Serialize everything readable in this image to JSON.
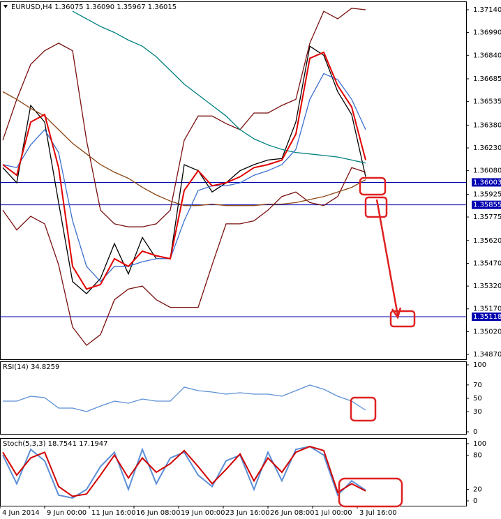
{
  "chart_data": [
    {
      "type": "line",
      "title": "EURUSD,H4  1.36075 1.36090 1.35967 1.36015",
      "x": [
        1,
        6,
        11,
        16,
        21,
        26,
        31,
        36,
        41,
        46,
        51,
        56,
        61,
        66,
        71,
        76,
        81,
        86,
        91,
        96,
        101,
        106,
        111,
        116,
        121,
        126,
        131
      ],
      "xlim": [
        0,
        167
      ],
      "ylim": [
        1.34838,
        1.37195
      ],
      "yticks": [
        {
          "value": 1.3714,
          "label": "1.37140"
        },
        {
          "value": 1.3699,
          "label": "1.36990"
        },
        {
          "value": 1.3684,
          "label": "1.36840"
        },
        1.36685,
        1.36535,
        {
          "value": 1.3638,
          "label": "1.36380"
        },
        {
          "value": 1.3623,
          "label": "1.36230"
        },
        {
          "value": 1.3608,
          "label": "1.36080"
        },
        1.35925,
        1.35775,
        {
          "value": 1.3562,
          "label": "1.35620"
        },
        {
          "value": 1.3547,
          "label": "1.35470"
        },
        {
          "value": 1.3532,
          "label": "1.35320"
        },
        {
          "value": 1.3517,
          "label": "1.35170"
        },
        {
          "value": 1.3502,
          "label": "1.35020"
        },
        {
          "value": 1.3487,
          "label": "1.34870"
        }
      ],
      "hlines": [
        1.36003,
        1.35855,
        1.35118
      ],
      "hline_color": "#0000b0",
      "series": [
        {
          "color": "#000000",
          "values": [
            1.361,
            1.36,
            1.3651,
            1.364,
            1.3587,
            1.3535,
            1.3527,
            1.3537,
            1.356,
            1.354,
            1.3564,
            1.355,
            1.355,
            1.3612,
            1.3608,
            1.3594,
            1.36,
            1.3608,
            1.3612,
            1.3615,
            1.3616,
            1.364,
            1.369,
            1.3684,
            1.366,
            1.3645,
            1.3604
          ]
        },
        {
          "color": "#7a1010",
          "values": [
            1.3628,
            1.3655,
            1.3678,
            1.3687,
            1.3692,
            1.3687,
            1.3628,
            1.3582,
            1.3573,
            1.3571,
            1.3571,
            1.3573,
            1.3582,
            1.3628,
            1.3644,
            1.3644,
            1.3639,
            1.3635,
            1.3646,
            1.3646,
            1.3651,
            1.3655,
            1.3692,
            1.3713,
            1.3708,
            1.3715,
            1.3714
          ]
        },
        {
          "color": "#7a1010",
          "values": [
            1.3582,
            1.3569,
            1.3578,
            1.3573,
            1.3546,
            1.3505,
            1.3493,
            1.35,
            1.3523,
            1.353,
            1.3532,
            1.3523,
            1.3518,
            1.3518,
            1.3518,
            1.3546,
            1.3573,
            1.3573,
            1.3575,
            1.3582,
            1.3591,
            1.3594,
            1.3587,
            1.3585,
            1.3591,
            1.361,
            1.3607
          ]
        },
        {
          "color": "#8b4513",
          "values": [
            1.366,
            1.3655,
            1.3649,
            1.3644,
            1.3635,
            1.3626,
            1.3619,
            1.3612,
            1.3607,
            1.3603,
            1.3597,
            1.3592,
            1.3588,
            1.3585,
            1.3585,
            1.3586,
            1.3585,
            1.3585,
            1.3585,
            1.3586,
            1.3586,
            1.3587,
            1.3589,
            1.3591,
            1.3594,
            1.3597,
            1.3602
          ]
        },
        {
          "color": "#008080",
          "values": [
            null,
            null,
            null,
            null,
            null,
            1.3713,
            1.3708,
            1.3703,
            1.3699,
            1.3694,
            1.369,
            1.3683,
            1.3674,
            1.3665,
            1.3658,
            1.3651,
            1.3644,
            1.3635,
            1.3629,
            1.3625,
            1.3622,
            1.362,
            1.3619,
            1.3618,
            1.3617,
            1.3615,
            1.3613
          ]
        },
        {
          "color": "#3a6fd0",
          "values": [
            1.3612,
            1.361,
            1.3625,
            1.3635,
            1.362,
            1.3575,
            1.3545,
            1.3535,
            1.3545,
            1.3545,
            1.3548,
            1.355,
            1.355,
            1.3575,
            1.3595,
            1.3598,
            1.3598,
            1.36,
            1.3605,
            1.3608,
            1.3612,
            1.3622,
            1.3655,
            1.3672,
            1.3668,
            1.3655,
            1.3635
          ]
        },
        {
          "color": "#e00000",
          "values": [
            1.3612,
            1.3605,
            1.364,
            1.3645,
            1.361,
            1.3545,
            1.353,
            1.3533,
            1.355,
            1.3545,
            1.3555,
            1.3552,
            1.355,
            1.3595,
            1.3608,
            1.3598,
            1.36,
            1.3604,
            1.361,
            1.3612,
            1.3615,
            1.3632,
            1.3682,
            1.3686,
            1.3664,
            1.365,
            1.3615
          ]
        }
      ]
    },
    {
      "type": "line",
      "title": "RSI(14) 34.8259",
      "x": [
        1,
        6,
        11,
        16,
        21,
        26,
        31,
        36,
        41,
        46,
        51,
        56,
        61,
        66,
        71,
        76,
        81,
        86,
        91,
        96,
        101,
        106,
        111,
        116,
        121,
        126,
        131
      ],
      "xlim": [
        0,
        167
      ],
      "ylim": [
        -3.1,
        105.2
      ],
      "yticks": [
        100,
        70,
        50,
        30,
        0
      ],
      "series": [
        {
          "color": "#5b8fd6",
          "values": [
            45.8,
            45.8,
            53.1,
            51,
            35.4,
            35.4,
            30.2,
            38.5,
            45.8,
            42.7,
            49,
            45.8,
            45.8,
            66.7,
            61.5,
            59.4,
            56.3,
            58.3,
            56.3,
            56.3,
            53.1,
            61.5,
            69.8,
            63.5,
            53.1,
            45.8,
            32.3
          ]
        }
      ]
    },
    {
      "type": "line",
      "title": "Stoch(5,3,3) 18.7541 17.1947",
      "x": [
        1,
        6,
        11,
        16,
        21,
        26,
        31,
        36,
        41,
        46,
        51,
        56,
        61,
        66,
        71,
        76,
        81,
        86,
        91,
        96,
        101,
        106,
        111,
        116,
        121,
        126,
        131
      ],
      "xlim": [
        0,
        167
      ],
      "ylim": [
        -8.5,
        109.8
      ],
      "yticks": [
        100,
        80,
        20,
        0
      ],
      "xticks": [
        {
          "value": 0,
          "label": "4 Jun 2014"
        },
        {
          "value": 16,
          "label": "9 Jun 00:00"
        },
        {
          "value": 32,
          "label": "11 Jun 16:00"
        },
        {
          "value": 48,
          "label": "16 Jun 08:00"
        },
        {
          "value": 64,
          "label": "19 Jun 00:00"
        },
        {
          "value": 80,
          "label": "23 Jun 16:00"
        },
        {
          "value": 96,
          "label": "26 Jun 08:00"
        },
        {
          "value": 112,
          "label": "1 Jul 00:00"
        },
        {
          "value": 128,
          "label": "3 Jul 16:00"
        }
      ],
      "series": [
        {
          "color": "#5b8fd6",
          "values": [
            80,
            30,
            90,
            70,
            10,
            5,
            20,
            60,
            85,
            20,
            90,
            30,
            75,
            85,
            45,
            25,
            70,
            80,
            20,
            85,
            35,
            90,
            95,
            80,
            10,
            35,
            18.7541
          ]
        },
        {
          "color": "#d00000",
          "values": [
            85,
            45,
            75,
            85,
            25,
            8,
            12,
            45,
            80,
            40,
            75,
            50,
            65,
            88,
            60,
            30,
            55,
            82,
            35,
            75,
            50,
            85,
            95,
            88,
            15,
            30,
            17.1947
          ]
        }
      ]
    }
  ]
}
